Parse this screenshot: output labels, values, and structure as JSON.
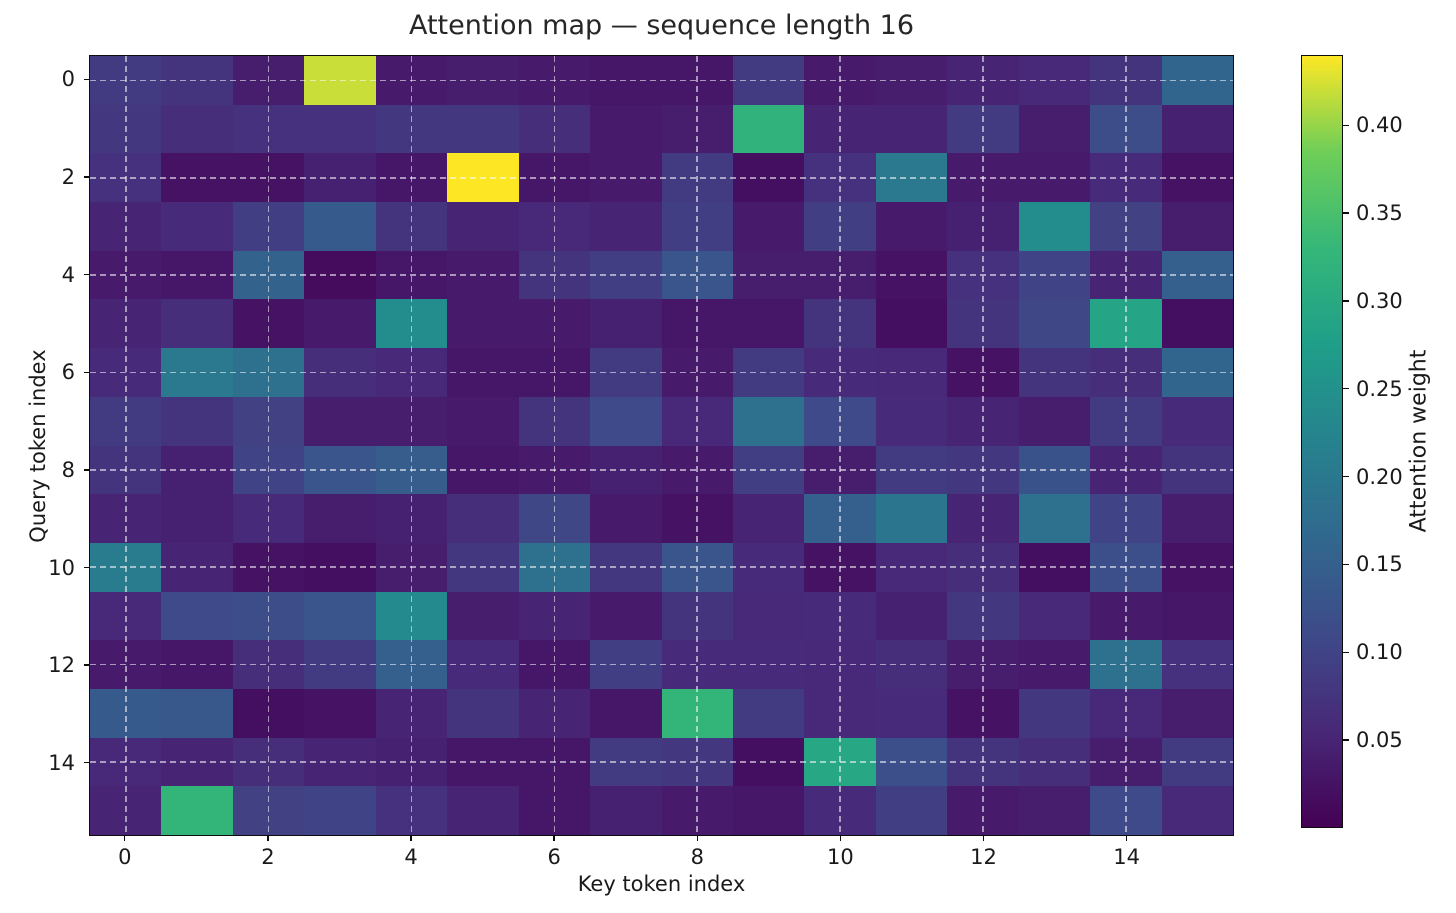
{
  "figure": {
    "title": "Attention map — sequence length 16",
    "xlabel": "Key token index",
    "ylabel": "Query token index",
    "colorbar_label": "Attention weight"
  },
  "chart_data": {
    "type": "heatmap",
    "title": "Attention map — sequence length 16",
    "xlabel": "Key token index",
    "ylabel": "Query token index",
    "colorbar_label": "Attention weight",
    "n_rows": 16,
    "n_cols": 16,
    "x_tick_values": [
      0,
      2,
      4,
      6,
      8,
      10,
      12,
      14
    ],
    "y_tick_values": [
      0,
      2,
      4,
      6,
      8,
      10,
      12,
      14
    ],
    "colorbar_tick_labels": [
      "0.05",
      "0.10",
      "0.15",
      "0.20",
      "0.25",
      "0.30",
      "0.35",
      "0.40"
    ],
    "colorbar_tick_values": [
      0.05,
      0.1,
      0.15,
      0.2,
      0.25,
      0.3,
      0.35,
      0.4
    ],
    "vmin": 0.0,
    "vmax": 0.44,
    "colormap": "viridis",
    "colormap_anchors": [
      "#440154",
      "#482878",
      "#3e4a89",
      "#31688e",
      "#26828e",
      "#1f9e89",
      "#35b779",
      "#6ece58",
      "#fde725"
    ],
    "grid": {
      "visible": true,
      "style": "dashed",
      "color": "rgba(255,255,255,0.55)"
    },
    "legend_position": "colorbar-right",
    "values": [
      [
        0.085,
        0.075,
        0.04,
        0.42,
        0.035,
        0.04,
        0.035,
        0.03,
        0.03,
        0.085,
        0.035,
        0.04,
        0.05,
        0.055,
        0.075,
        0.16
      ],
      [
        0.08,
        0.065,
        0.07,
        0.07,
        0.08,
        0.08,
        0.065,
        0.035,
        0.04,
        0.32,
        0.05,
        0.05,
        0.085,
        0.04,
        0.115,
        0.045
      ],
      [
        0.07,
        0.025,
        0.025,
        0.045,
        0.03,
        0.44,
        0.03,
        0.035,
        0.085,
        0.02,
        0.07,
        0.2,
        0.035,
        0.035,
        0.06,
        0.025
      ],
      [
        0.05,
        0.06,
        0.09,
        0.14,
        0.075,
        0.05,
        0.055,
        0.05,
        0.09,
        0.035,
        0.09,
        0.035,
        0.045,
        0.24,
        0.095,
        0.04
      ],
      [
        0.035,
        0.03,
        0.155,
        0.015,
        0.03,
        0.035,
        0.075,
        0.09,
        0.13,
        0.04,
        0.04,
        0.025,
        0.07,
        0.1,
        0.05,
        0.15
      ],
      [
        0.05,
        0.065,
        0.025,
        0.035,
        0.24,
        0.035,
        0.035,
        0.045,
        0.03,
        0.03,
        0.075,
        0.02,
        0.075,
        0.105,
        0.29,
        0.02
      ],
      [
        0.06,
        0.2,
        0.185,
        0.065,
        0.055,
        0.03,
        0.03,
        0.085,
        0.035,
        0.085,
        0.06,
        0.055,
        0.025,
        0.075,
        0.065,
        0.16
      ],
      [
        0.085,
        0.075,
        0.095,
        0.04,
        0.04,
        0.035,
        0.075,
        0.11,
        0.055,
        0.185,
        0.11,
        0.06,
        0.05,
        0.04,
        0.085,
        0.06
      ],
      [
        0.075,
        0.045,
        0.1,
        0.13,
        0.145,
        0.03,
        0.035,
        0.045,
        0.035,
        0.09,
        0.04,
        0.085,
        0.08,
        0.125,
        0.05,
        0.075
      ],
      [
        0.05,
        0.045,
        0.06,
        0.04,
        0.045,
        0.065,
        0.105,
        0.035,
        0.025,
        0.05,
        0.15,
        0.195,
        0.05,
        0.185,
        0.1,
        0.04
      ],
      [
        0.205,
        0.05,
        0.025,
        0.02,
        0.04,
        0.08,
        0.185,
        0.08,
        0.13,
        0.06,
        0.025,
        0.055,
        0.065,
        0.02,
        0.12,
        0.025
      ],
      [
        0.055,
        0.11,
        0.115,
        0.13,
        0.235,
        0.04,
        0.05,
        0.035,
        0.075,
        0.055,
        0.06,
        0.045,
        0.08,
        0.055,
        0.035,
        0.03
      ],
      [
        0.035,
        0.03,
        0.065,
        0.085,
        0.15,
        0.06,
        0.03,
        0.09,
        0.06,
        0.06,
        0.055,
        0.065,
        0.04,
        0.035,
        0.185,
        0.07
      ],
      [
        0.14,
        0.135,
        0.02,
        0.025,
        0.05,
        0.075,
        0.05,
        0.03,
        0.325,
        0.085,
        0.055,
        0.06,
        0.025,
        0.08,
        0.055,
        0.04
      ],
      [
        0.055,
        0.05,
        0.065,
        0.05,
        0.045,
        0.03,
        0.03,
        0.085,
        0.08,
        0.02,
        0.295,
        0.12,
        0.075,
        0.065,
        0.04,
        0.085
      ],
      [
        0.05,
        0.325,
        0.095,
        0.1,
        0.07,
        0.05,
        0.03,
        0.045,
        0.035,
        0.03,
        0.06,
        0.09,
        0.035,
        0.04,
        0.11,
        0.055
      ]
    ]
  }
}
